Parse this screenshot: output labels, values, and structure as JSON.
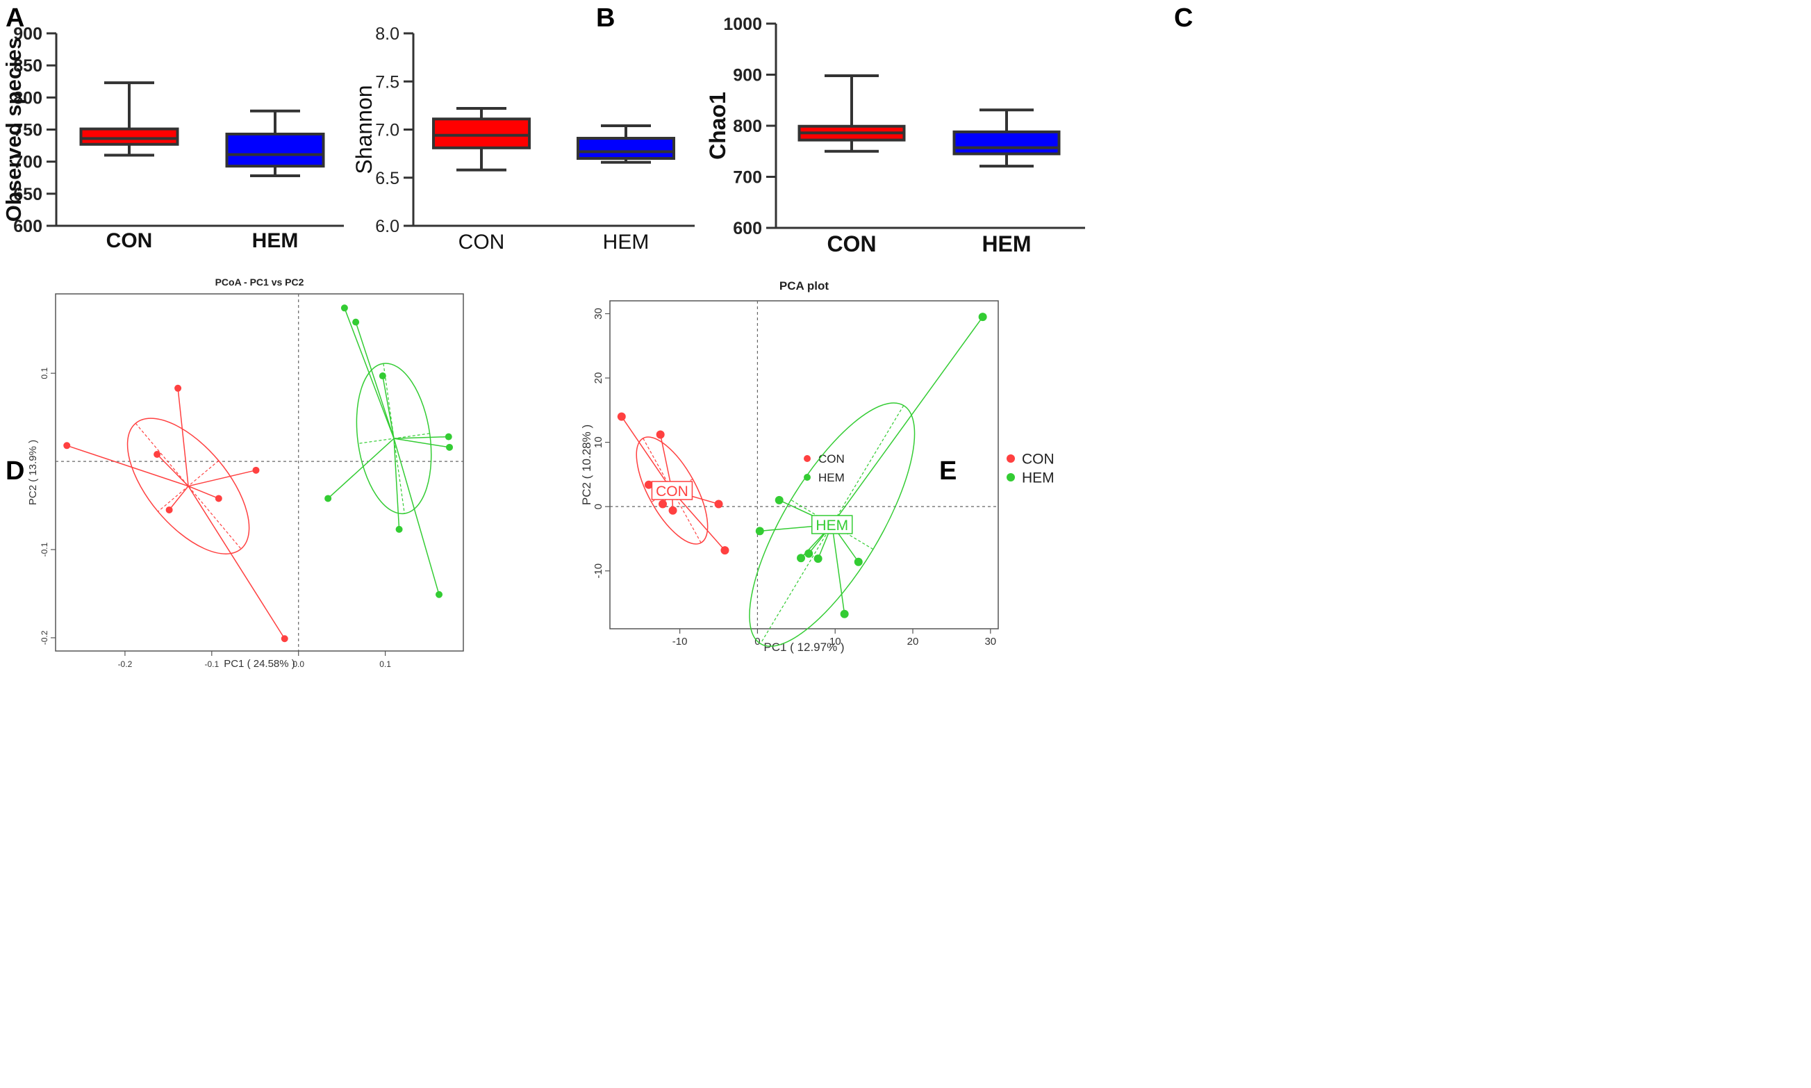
{
  "colors": {
    "con": "#ff0000",
    "hem": "#0000ff",
    "con_scatter": "#ff4040",
    "hem_scatter": "#33cc33",
    "axis": "#333333"
  },
  "chart_data": [
    {
      "panel": "A",
      "type": "box",
      "title": "",
      "xlabel": "",
      "ylabel": "Observed species",
      "ylim": [
        600,
        900
      ],
      "yticks": [
        "600",
        "650",
        "700",
        "750",
        "800",
        "850",
        "900"
      ],
      "categories": [
        "CON",
        "HEM"
      ],
      "boxes": [
        {
          "name": "CON",
          "min": 710,
          "q1": 727,
          "median": 736,
          "q3": 751,
          "max": 823
        },
        {
          "name": "HEM",
          "min": 678,
          "q1": 693,
          "median": 711,
          "q3": 743,
          "max": 779
        }
      ]
    },
    {
      "panel": "B",
      "type": "box",
      "title": "",
      "xlabel": "",
      "ylabel": "Shannon",
      "ylim": [
        6.0,
        8.0
      ],
      "yticks": [
        "6.0",
        "6.5",
        "7.0",
        "7.5",
        "8.0"
      ],
      "categories": [
        "CON",
        "HEM"
      ],
      "boxes": [
        {
          "name": "CON",
          "min": 6.58,
          "q1": 6.81,
          "median": 6.94,
          "q3": 7.11,
          "max": 7.22
        },
        {
          "name": "HEM",
          "min": 6.66,
          "q1": 6.7,
          "median": 6.77,
          "q3": 6.91,
          "max": 7.04
        }
      ]
    },
    {
      "panel": "C",
      "type": "box",
      "title": "",
      "xlabel": "",
      "ylabel": "Chao1",
      "ylim": [
        600,
        1000
      ],
      "yticks": [
        "600",
        "700",
        "800",
        "900",
        "1000"
      ],
      "categories": [
        "CON",
        "HEM"
      ],
      "boxes": [
        {
          "name": "CON",
          "min": 750,
          "q1": 772,
          "median": 786,
          "q3": 799,
          "max": 898
        },
        {
          "name": "HEM",
          "min": 721,
          "q1": 745,
          "median": 757,
          "q3": 788,
          "max": 831
        }
      ]
    },
    {
      "panel": "D",
      "type": "scatter",
      "title": "PCoA - PC1 vs PC2",
      "xlabel": "PC1 ( 24.58% )",
      "ylabel": "PC2 ( 13.9% )",
      "xlim": [
        -0.28,
        0.19
      ],
      "ylim": [
        -0.215,
        0.19
      ],
      "xticks": [
        -0.2,
        -0.1,
        0.0,
        0.1
      ],
      "xtick_labels": [
        "-0.2",
        "-0.1",
        "0.0",
        "0.1"
      ],
      "yticks": [
        -0.2,
        -0.1,
        0.1
      ],
      "ytick_labels": [
        "-0.2",
        "-0.1",
        "0.1"
      ],
      "legend": [
        "CON",
        "HEM"
      ],
      "legend_position": "right",
      "series": [
        {
          "name": "CON",
          "centroid": [
            -0.127,
            -0.028
          ],
          "points": [
            [
              -0.267,
              0.018
            ],
            [
              -0.163,
              0.008
            ],
            [
              -0.139,
              0.083
            ],
            [
              -0.149,
              -0.055
            ],
            [
              -0.092,
              -0.042
            ],
            [
              -0.049,
              -0.01
            ],
            [
              -0.016,
              -0.201
            ]
          ]
        },
        {
          "name": "HEM",
          "centroid": [
            0.11,
            0.026
          ],
          "points": [
            [
              0.053,
              0.174
            ],
            [
              0.066,
              0.158
            ],
            [
              0.097,
              0.097
            ],
            [
              0.173,
              0.028
            ],
            [
              0.174,
              0.016
            ],
            [
              0.034,
              -0.042
            ],
            [
              0.116,
              -0.077
            ],
            [
              0.162,
              -0.151
            ]
          ]
        }
      ]
    },
    {
      "panel": "E",
      "type": "scatter",
      "title": "PCA plot",
      "xlabel": "PC1 ( 12.97% )",
      "ylabel": "PC2 ( 10.28% )",
      "xlim": [
        -19,
        31
      ],
      "ylim": [
        -19,
        32
      ],
      "xticks": [
        -10,
        0,
        10,
        20,
        30
      ],
      "xtick_labels": [
        "-10",
        "0",
        "10",
        "20",
        "30"
      ],
      "yticks": [
        -10,
        0,
        10,
        20,
        30
      ],
      "ytick_labels": [
        "-10",
        "0",
        "10",
        "20",
        "30"
      ],
      "legend": [
        "CON",
        "HEM"
      ],
      "legend_position": "right",
      "series": [
        {
          "name": "CON",
          "centroid": [
            -11,
            2.5
          ],
          "points": [
            [
              -17.5,
              14
            ],
            [
              -12.5,
              11.2
            ],
            [
              -14,
              3.4
            ],
            [
              -12.2,
              0.4
            ],
            [
              -10.9,
              -0.6
            ],
            [
              -5,
              0.4
            ],
            [
              -4.2,
              -6.8
            ]
          ]
        },
        {
          "name": "HEM",
          "centroid": [
            9.6,
            -2.8
          ],
          "points": [
            [
              29,
              29.5
            ],
            [
              2.8,
              1
            ],
            [
              0.3,
              -3.8
            ],
            [
              6.6,
              -7.3
            ],
            [
              5.6,
              -8
            ],
            [
              7.8,
              -8.1
            ],
            [
              13,
              -8.6
            ],
            [
              11.2,
              -16.7
            ]
          ]
        }
      ]
    }
  ]
}
